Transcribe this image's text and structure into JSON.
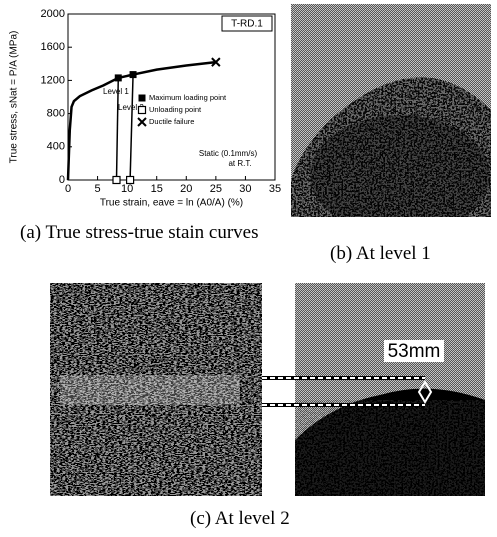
{
  "chart_data": {
    "type": "line",
    "title": "T-RD.1",
    "x_label": "True strain, eave = ln (A0/A) (%)",
    "y_label": "True stress, sNat = P/A (MPa)",
    "annotations": [
      "Level 1",
      "Level 2",
      "Static (0.1mm/s)",
      "at R.T."
    ],
    "xlim": [
      0,
      35
    ],
    "xticks": [
      0,
      5,
      10,
      15,
      20,
      25,
      30,
      35
    ],
    "ylim": [
      0,
      2000
    ],
    "yticks": [
      0,
      400,
      800,
      1200,
      1600,
      2000
    ],
    "series": [
      {
        "marker": "line",
        "color": "#000000",
        "x": [
          0,
          0.3,
          0.6,
          1,
          2,
          4,
          6,
          8.5,
          11,
          15,
          20,
          25
        ],
        "values": [
          0,
          600,
          880,
          950,
          1010,
          1080,
          1140,
          1230,
          1270,
          1330,
          1380,
          1420
        ]
      },
      {
        "marker": "line",
        "color": "#000000",
        "x": [
          8.5,
          8.2
        ],
        "values": [
          1230,
          0
        ]
      },
      {
        "marker": "line",
        "color": "#000000",
        "x": [
          11,
          10.5
        ],
        "values": [
          1270,
          0
        ]
      },
      {
        "name": "Maximum loading point",
        "marker": "filled-square",
        "color": "#000000",
        "x": [
          8.5,
          11
        ],
        "values": [
          1230,
          1270
        ]
      },
      {
        "name": "Unloading point",
        "marker": "open-square",
        "color": "#000000",
        "x": [
          8.2,
          10.5
        ],
        "values": [
          0,
          0
        ]
      },
      {
        "name": "Ductile failure",
        "marker": "cross",
        "color": "#000000",
        "x": [
          25
        ],
        "values": [
          1420
        ]
      }
    ]
  },
  "captions": {
    "a": "(a)  True stress-true stain curves",
    "b": "(b)  At level 1",
    "c": "(c)  At level 2"
  },
  "scale_label": "53mm"
}
